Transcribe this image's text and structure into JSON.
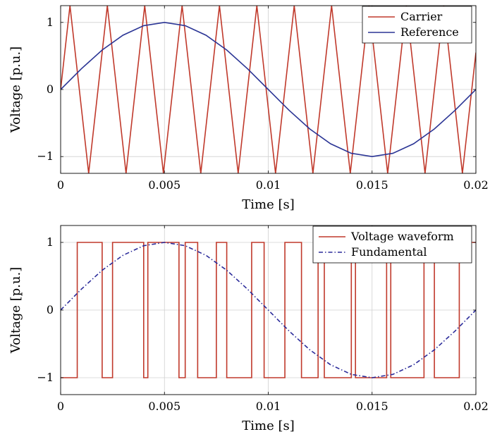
{
  "chart_data": [
    {
      "type": "line",
      "xlabel": "Time [s]",
      "ylabel": "Voltage [p.u.]",
      "xlim": [
        0,
        0.02
      ],
      "ylim": [
        -1.25,
        1.25
      ],
      "xticks": [
        0,
        0.005,
        0.01,
        0.015,
        0.02
      ],
      "xtick_labels": [
        "0",
        "0.005",
        "0.01",
        "0.015",
        "0.02"
      ],
      "yticks": [
        -1,
        0,
        1
      ],
      "ytick_labels": [
        "−1",
        "0",
        "1"
      ],
      "grid": true,
      "legend_position": "top-right",
      "series": [
        {
          "name": "Carrier",
          "color": "#c0392b",
          "style": "solid",
          "x": [
            0,
            0.00045,
            0.00135,
            0.00225,
            0.00315,
            0.00405,
            0.00495,
            0.00585,
            0.00675,
            0.00765,
            0.00855,
            0.00945,
            0.01035,
            0.01125,
            0.01215,
            0.01305,
            0.01395,
            0.01485,
            0.01575,
            0.01665,
            0.01755,
            0.01845,
            0.01935,
            0.02
          ],
          "y": [
            0,
            1.25,
            -1.25,
            1.25,
            -1.25,
            1.25,
            -1.25,
            1.25,
            -1.25,
            1.25,
            -1.25,
            1.25,
            -1.25,
            1.25,
            -1.25,
            1.25,
            -1.25,
            1.25,
            -1.25,
            1.25,
            -1.25,
            1.25,
            -1.25,
            0.55
          ]
        },
        {
          "name": "Reference",
          "color": "#2b3595",
          "style": "solid",
          "x": [
            0,
            0.001,
            0.002,
            0.003,
            0.004,
            0.005,
            0.006,
            0.007,
            0.008,
            0.009,
            0.01,
            0.011,
            0.012,
            0.013,
            0.014,
            0.015,
            0.016,
            0.017,
            0.018,
            0.019,
            0.02
          ],
          "y": [
            0,
            0.309,
            0.588,
            0.809,
            0.951,
            1,
            0.951,
            0.809,
            0.588,
            0.309,
            0,
            -0.309,
            -0.588,
            -0.809,
            -0.951,
            -1,
            -0.951,
            -0.809,
            -0.588,
            -0.309,
            0
          ]
        }
      ]
    },
    {
      "type": "line",
      "xlabel": "Time [s]",
      "ylabel": "Voltage [p.u.]",
      "xlim": [
        0,
        0.02
      ],
      "ylim": [
        -1.25,
        1.25
      ],
      "xticks": [
        0,
        0.005,
        0.01,
        0.015,
        0.02
      ],
      "xtick_labels": [
        "0",
        "0.005",
        "0.01",
        "0.015",
        "0.02"
      ],
      "yticks": [
        -1,
        0,
        1
      ],
      "ytick_labels": [
        "−1",
        "0",
        "1"
      ],
      "grid": true,
      "legend_position": "top-right",
      "series": [
        {
          "name": "Voltage waveform",
          "color": "#c0392b",
          "style": "solid",
          "x": [
            0,
            0.0008,
            0.0008,
            0.002,
            0.002,
            0.0025,
            0.0025,
            0.004,
            0.004,
            0.0042,
            0.0042,
            0.0057,
            0.0057,
            0.006,
            0.006,
            0.0066,
            0.0066,
            0.0075,
            0.0075,
            0.008,
            0.008,
            0.0092,
            0.0092,
            0.0098,
            0.0098,
            0.0108,
            0.0108,
            0.0116,
            0.0116,
            0.0124,
            0.0124,
            0.0127,
            0.0127,
            0.014,
            0.014,
            0.0142,
            0.0142,
            0.0157,
            0.0157,
            0.0159,
            0.0159,
            0.0175,
            0.0175,
            0.018,
            0.018,
            0.0192,
            0.0192,
            0.02
          ],
          "y": [
            -1,
            -1,
            1,
            1,
            -1,
            -1,
            1,
            1,
            -1,
            -1,
            1,
            1,
            -1,
            -1,
            1,
            1,
            -1,
            -1,
            1,
            1,
            -1,
            -1,
            1,
            1,
            -1,
            -1,
            1,
            1,
            -1,
            -1,
            1,
            1,
            -1,
            -1,
            1,
            1,
            -1,
            -1,
            1,
            1,
            -1,
            -1,
            1,
            1,
            -1,
            -1,
            1,
            1
          ]
        },
        {
          "name": "Fundamental",
          "color": "#2b2b9a",
          "style": "dash-dot",
          "x": [
            0,
            0.001,
            0.002,
            0.003,
            0.004,
            0.005,
            0.006,
            0.007,
            0.008,
            0.009,
            0.01,
            0.011,
            0.012,
            0.013,
            0.014,
            0.015,
            0.016,
            0.017,
            0.018,
            0.019,
            0.02
          ],
          "y": [
            0,
            0.309,
            0.588,
            0.809,
            0.951,
            1,
            0.951,
            0.809,
            0.588,
            0.309,
            0,
            -0.309,
            -0.588,
            -0.809,
            -0.951,
            -1,
            -0.951,
            -0.809,
            -0.588,
            -0.309,
            0
          ]
        }
      ]
    }
  ]
}
